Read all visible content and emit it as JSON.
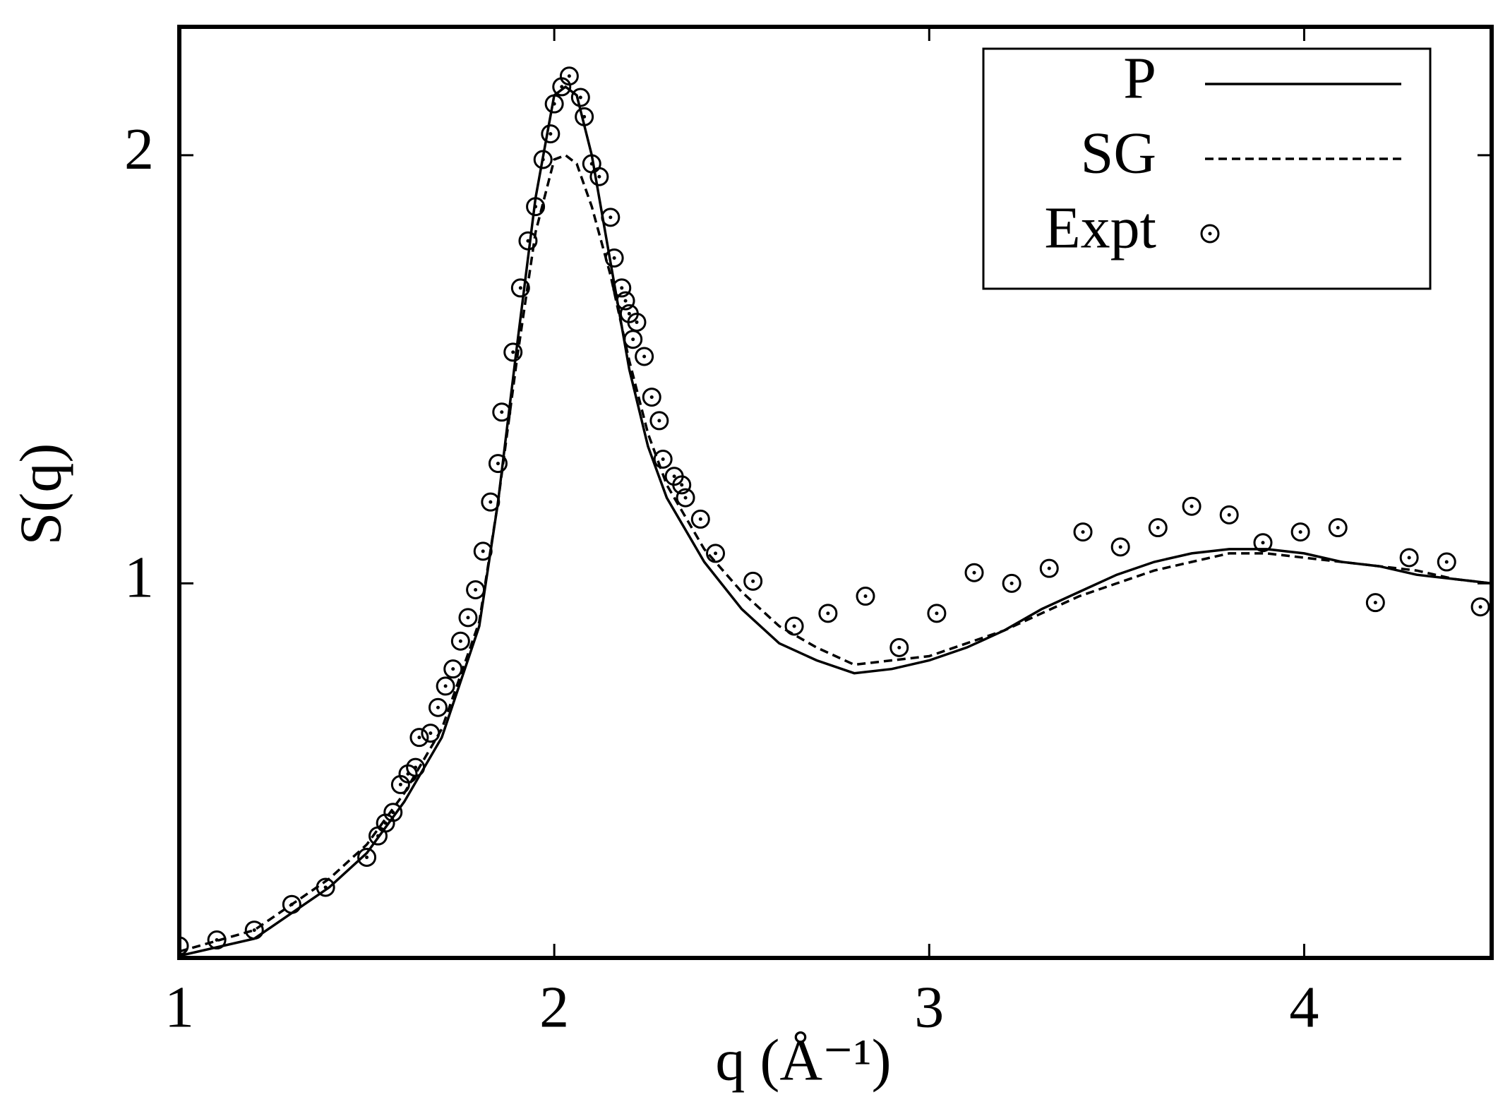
{
  "chart_data": {
    "type": "line",
    "x_label": "q (Å⁻¹)",
    "y_label": "S(q)",
    "xlim": [
      1,
      4.5
    ],
    "ylim": [
      0.125,
      2.3
    ],
    "xticks": [
      1,
      2,
      3,
      4
    ],
    "yticks": [
      1,
      2
    ],
    "legend": "upper right",
    "series": [
      {
        "name": "P",
        "color": "#000000",
        "style": "solid",
        "x": [
          1.0,
          1.2,
          1.4,
          1.5,
          1.6,
          1.7,
          1.8,
          1.85,
          1.9,
          1.95,
          2.0,
          2.03,
          2.06,
          2.1,
          2.15,
          2.2,
          2.25,
          2.3,
          2.4,
          2.5,
          2.6,
          2.7,
          2.8,
          2.9,
          3.0,
          3.1,
          3.2,
          3.3,
          3.4,
          3.5,
          3.6,
          3.7,
          3.8,
          3.9,
          4.0,
          4.1,
          4.2,
          4.3,
          4.4,
          4.5
        ],
        "values": [
          0.13,
          0.17,
          0.29,
          0.37,
          0.49,
          0.64,
          0.9,
          1.19,
          1.55,
          1.9,
          2.14,
          2.16,
          2.14,
          2.0,
          1.75,
          1.5,
          1.32,
          1.2,
          1.05,
          0.94,
          0.86,
          0.82,
          0.79,
          0.8,
          0.82,
          0.85,
          0.89,
          0.94,
          0.98,
          1.02,
          1.05,
          1.07,
          1.08,
          1.08,
          1.07,
          1.05,
          1.04,
          1.02,
          1.01,
          1.0
        ]
      },
      {
        "name": "SG",
        "color": "#000000",
        "style": "dashed",
        "x": [
          1.0,
          1.2,
          1.4,
          1.5,
          1.6,
          1.7,
          1.8,
          1.85,
          1.9,
          1.95,
          2.0,
          2.03,
          2.06,
          2.1,
          2.15,
          2.2,
          2.25,
          2.3,
          2.4,
          2.5,
          2.6,
          2.7,
          2.8,
          2.9,
          3.0,
          3.1,
          3.2,
          3.3,
          3.4,
          3.5,
          3.6,
          3.7,
          3.8,
          3.9,
          4.0,
          4.1,
          4.2,
          4.3,
          4.4,
          4.5
        ],
        "values": [
          0.14,
          0.19,
          0.31,
          0.39,
          0.51,
          0.66,
          0.91,
          1.19,
          1.52,
          1.82,
          1.99,
          2.0,
          1.98,
          1.88,
          1.72,
          1.52,
          1.35,
          1.23,
          1.08,
          0.98,
          0.9,
          0.85,
          0.81,
          0.82,
          0.83,
          0.86,
          0.89,
          0.93,
          0.97,
          1.0,
          1.03,
          1.05,
          1.07,
          1.07,
          1.06,
          1.05,
          1.04,
          1.03,
          1.01,
          1.0
        ]
      },
      {
        "name": "Expt",
        "color": "#000000",
        "style": "markers",
        "x": [
          1.0,
          1.1,
          1.2,
          1.3,
          1.39,
          1.5,
          1.53,
          1.55,
          1.57,
          1.59,
          1.61,
          1.63,
          1.64,
          1.67,
          1.69,
          1.71,
          1.73,
          1.75,
          1.77,
          1.79,
          1.81,
          1.83,
          1.85,
          1.86,
          1.89,
          1.91,
          1.93,
          1.95,
          1.97,
          1.99,
          2.0,
          2.02,
          2.04,
          2.07,
          2.08,
          2.1,
          2.12,
          2.15,
          2.16,
          2.18,
          2.19,
          2.2,
          2.21,
          2.22,
          2.24,
          2.26,
          2.28,
          2.29,
          2.32,
          2.34,
          2.35,
          2.39,
          2.43,
          2.53,
          2.64,
          2.73,
          2.83,
          2.92,
          3.02,
          3.12,
          3.22,
          3.32,
          3.41,
          3.51,
          3.61,
          3.7,
          3.8,
          3.89,
          3.99,
          4.09,
          4.19,
          4.28,
          4.38,
          4.47
        ],
        "values": [
          0.153,
          0.167,
          0.19,
          0.25,
          0.29,
          0.36,
          0.41,
          0.44,
          0.465,
          0.53,
          0.555,
          0.57,
          0.64,
          0.65,
          0.71,
          0.76,
          0.8,
          0.865,
          0.92,
          0.985,
          1.075,
          1.19,
          1.28,
          1.4,
          1.54,
          1.69,
          1.8,
          1.88,
          1.99,
          2.05,
          2.12,
          2.16,
          2.185,
          2.135,
          2.09,
          1.98,
          1.95,
          1.855,
          1.76,
          1.69,
          1.66,
          1.63,
          1.57,
          1.61,
          1.53,
          1.435,
          1.38,
          1.29,
          1.25,
          1.23,
          1.2,
          1.15,
          1.07,
          1.005,
          0.9,
          0.93,
          0.97,
          0.85,
          0.93,
          1.025,
          1.0,
          1.035,
          1.12,
          1.085,
          1.13,
          1.18,
          1.16,
          1.095,
          1.12,
          1.13,
          0.955,
          1.06,
          1.05,
          0.945
        ]
      }
    ]
  }
}
